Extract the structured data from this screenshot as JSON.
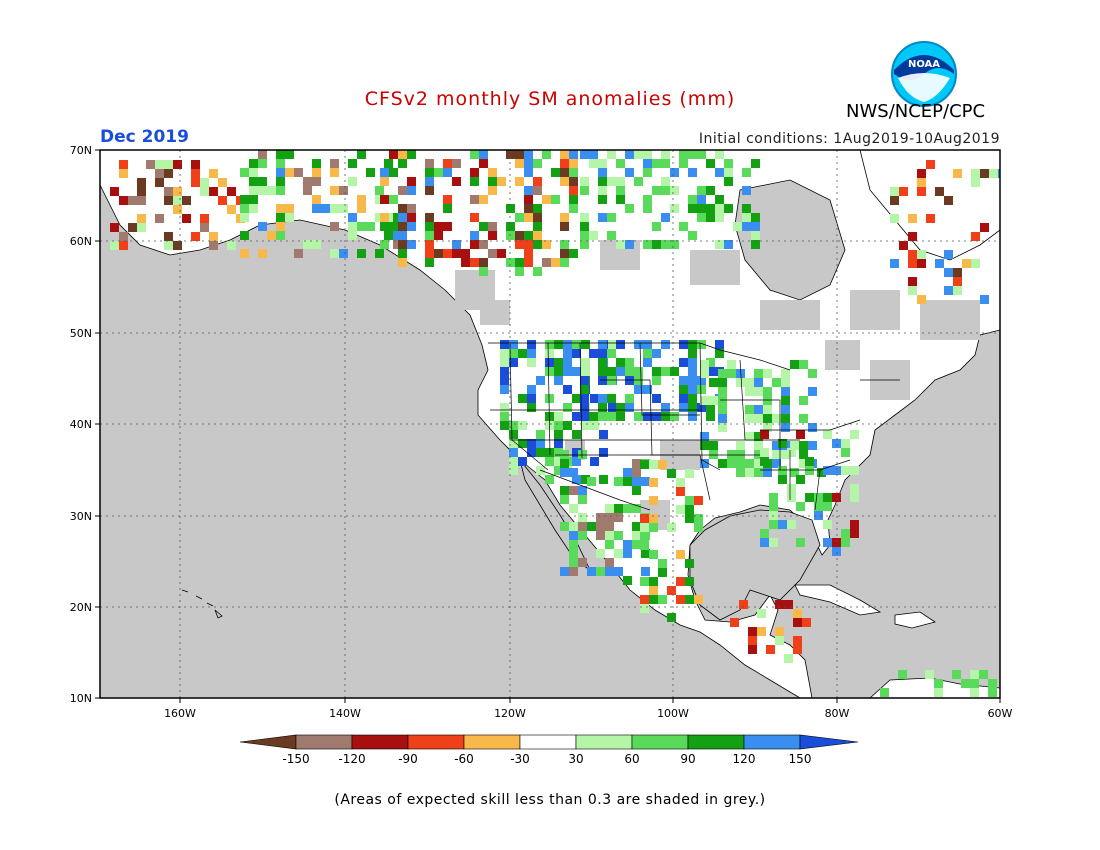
{
  "title": "CFSv2 monthly SM anomalies (mm)",
  "title_color": "#cc0000",
  "agency": "NWS/NCEP/CPC",
  "logo_text": "NOAA",
  "month": "Dec 2019",
  "month_color": "#1a4dd8",
  "initial_conditions": "Initial conditions: 1Aug2019-10Aug2019",
  "lat_labels": [
    "70N",
    "60N",
    "50N",
    "40N",
    "30N",
    "20N",
    "10N"
  ],
  "lon_labels": [
    "160W",
    "140W",
    "120W",
    "100W",
    "80W",
    "60W"
  ],
  "colorbar": {
    "colors": [
      "#6b3a22",
      "#a07a6e",
      "#a81010",
      "#f0401a",
      "#f8b84a",
      "#ffffff",
      "#b4f5a8",
      "#5ada5a",
      "#13a013",
      "#3a8ef0",
      "#1a4dd8"
    ],
    "ticks": [
      "-150",
      "-120",
      "-90",
      "-60",
      "-30",
      "30",
      "60",
      "90",
      "120",
      "150"
    ]
  },
  "map_colors": {
    "ocean": "#c8c8c8",
    "land": "#ffffff",
    "grey_skill": "#c8c8c8"
  },
  "note": "(Areas of expected skill less than 0.3 are shaded in grey.)"
}
